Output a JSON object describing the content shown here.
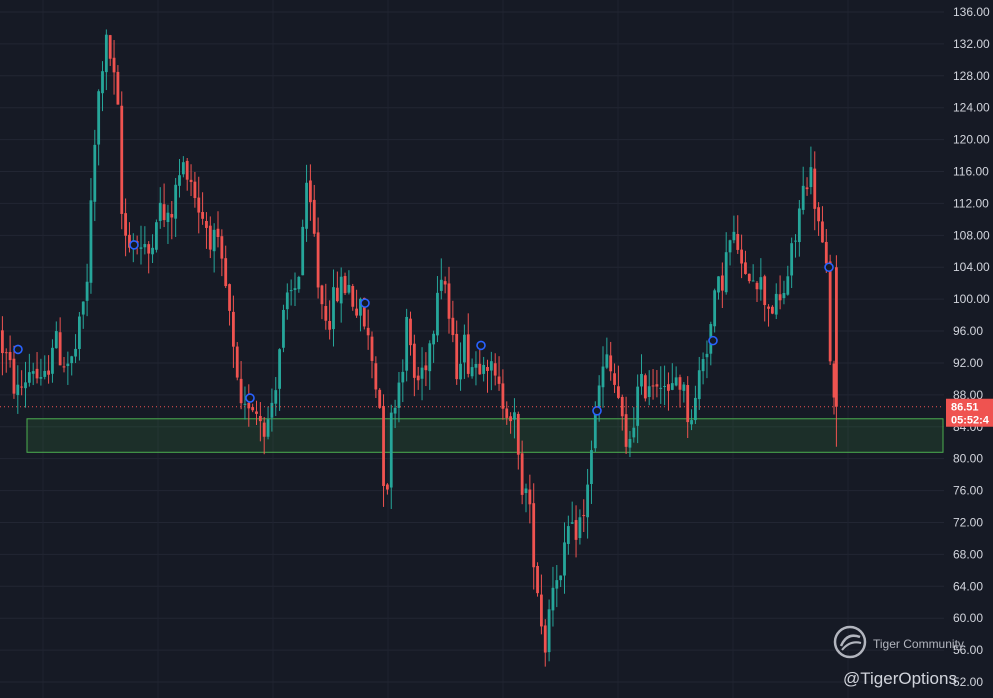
{
  "chart_data": {
    "type": "candlestick",
    "y_axis": {
      "position": "right",
      "min": 52,
      "max": 136,
      "ticks": [
        "136.00",
        "132.00",
        "128.00",
        "124.00",
        "120.00",
        "116.00",
        "112.00",
        "108.00",
        "104.00",
        "100.00",
        "96.00",
        "92.00",
        "88.00",
        "84.00",
        "80.00",
        "76.00",
        "72.00",
        "68.00",
        "64.00",
        "60.00",
        "56.00",
        "52.00"
      ]
    },
    "grid": true,
    "current_price": {
      "value": 86.51,
      "label": "86.51",
      "countdown": "05:52:4"
    },
    "support_zone": {
      "low": 80.8,
      "high": 85.0
    },
    "markers": [
      {
        "label": "",
        "approx_price": 93.7
      },
      {
        "label": "",
        "approx_price": 106.8
      },
      {
        "label": "",
        "approx_price": 87.6
      },
      {
        "label": "",
        "approx_price": 99.5
      },
      {
        "label": "",
        "approx_price": 94.2
      },
      {
        "label": "",
        "approx_price": 86.0
      },
      {
        "label": "",
        "approx_price": 94.8
      },
      {
        "label": "",
        "approx_price": 104.0
      }
    ],
    "anchors": [
      [
        0,
        96
      ],
      [
        10,
        92
      ],
      [
        20,
        88
      ],
      [
        35,
        92
      ],
      [
        45,
        88
      ],
      [
        55,
        95
      ],
      [
        68,
        92
      ],
      [
        75,
        92
      ],
      [
        82,
        96
      ],
      [
        90,
        103
      ],
      [
        95,
        115
      ],
      [
        100,
        124
      ],
      [
        107,
        132
      ],
      [
        112,
        131
      ],
      [
        120,
        124
      ],
      [
        125,
        108
      ],
      [
        133,
        108
      ],
      [
        140,
        107
      ],
      [
        150,
        105
      ],
      [
        160,
        112
      ],
      [
        170,
        109
      ],
      [
        183,
        116
      ],
      [
        190,
        117
      ],
      [
        200,
        112
      ],
      [
        210,
        109
      ],
      [
        220,
        106
      ],
      [
        230,
        100
      ],
      [
        238,
        90
      ],
      [
        245,
        84
      ],
      [
        252,
        88
      ],
      [
        260,
        86
      ],
      [
        270,
        84
      ],
      [
        278,
        90
      ],
      [
        285,
        97
      ],
      [
        292,
        100
      ],
      [
        300,
        102
      ],
      [
        308,
        113
      ],
      [
        315,
        110
      ],
      [
        322,
        100
      ],
      [
        332,
        98
      ],
      [
        340,
        101
      ],
      [
        350,
        102
      ],
      [
        358,
        99
      ],
      [
        365,
        98
      ],
      [
        375,
        92
      ],
      [
        382,
        87
      ],
      [
        388,
        74
      ],
      [
        395,
        87
      ],
      [
        402,
        90
      ],
      [
        410,
        97
      ],
      [
        418,
        89
      ],
      [
        427,
        92
      ],
      [
        435,
        96
      ],
      [
        440,
        103
      ],
      [
        446,
        104
      ],
      [
        452,
        97
      ],
      [
        458,
        91
      ],
      [
        465,
        95
      ],
      [
        472,
        92
      ],
      [
        480,
        92
      ],
      [
        487,
        94
      ],
      [
        495,
        90
      ],
      [
        502,
        88
      ],
      [
        510,
        87
      ],
      [
        518,
        84
      ],
      [
        522,
        77
      ],
      [
        527,
        77
      ],
      [
        533,
        72
      ],
      [
        540,
        64
      ],
      [
        547,
        56
      ],
      [
        552,
        62
      ],
      [
        558,
        67
      ],
      [
        564,
        64
      ],
      [
        570,
        71
      ],
      [
        575,
        70
      ],
      [
        580,
        72
      ],
      [
        586,
        72
      ],
      [
        592,
        80
      ],
      [
        597,
        84
      ],
      [
        603,
        90
      ],
      [
        609,
        92
      ],
      [
        615,
        90
      ],
      [
        622,
        87
      ],
      [
        628,
        80
      ],
      [
        634,
        84
      ],
      [
        640,
        88
      ],
      [
        646,
        89
      ],
      [
        652,
        90
      ],
      [
        658,
        90
      ],
      [
        664,
        91
      ],
      [
        672,
        87
      ],
      [
        680,
        91
      ],
      [
        690,
        86
      ],
      [
        697,
        86
      ],
      [
        704,
        93
      ],
      [
        711,
        95
      ],
      [
        718,
        100
      ],
      [
        725,
        103
      ],
      [
        732,
        107
      ],
      [
        740,
        107
      ],
      [
        747,
        101
      ],
      [
        752,
        104
      ],
      [
        760,
        103
      ],
      [
        768,
        100
      ],
      [
        776,
        99
      ],
      [
        782,
        99
      ],
      [
        790,
        103
      ],
      [
        797,
        107
      ],
      [
        803,
        112
      ],
      [
        810,
        116
      ],
      [
        815,
        115
      ],
      [
        820,
        110
      ],
      [
        825,
        106
      ],
      [
        829,
        103
      ],
      [
        835,
        86.5
      ]
    ],
    "watermark": {
      "title": "Tiger Community",
      "handle": "@TigerOptions"
    }
  }
}
